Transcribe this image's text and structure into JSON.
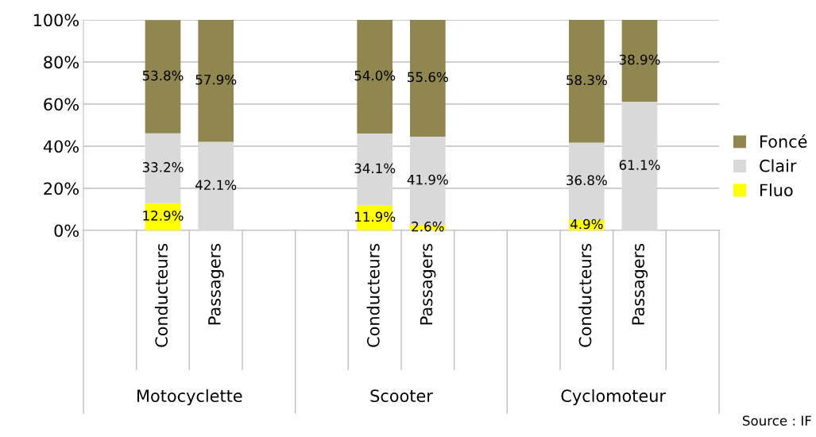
{
  "chart_data": {
    "type": "bar",
    "stacked": true,
    "categories": [
      null,
      "Conducteurs",
      "Passagers",
      null,
      null,
      "Conducteurs",
      "Passagers",
      null,
      null,
      "Conducteurs",
      "Passagers",
      null
    ],
    "series": [
      {
        "name": "Fluo",
        "color": "#ffff00",
        "values": [
          null,
          12.9,
          0,
          null,
          null,
          11.9,
          2.6,
          null,
          null,
          4.9,
          0,
          null
        ],
        "value_labels": [
          null,
          "12.9%",
          null,
          null,
          null,
          "11.9%",
          "2.6%",
          null,
          null,
          "4.9%",
          null,
          null
        ]
      },
      {
        "name": "Clair",
        "color": "#d9d9d9",
        "values": [
          null,
          33.2,
          42.1,
          null,
          null,
          34.1,
          41.9,
          null,
          null,
          36.8,
          61.1,
          null
        ],
        "value_labels": [
          null,
          "33.2%",
          "42.1%",
          null,
          null,
          "34.1%",
          "41.9%",
          null,
          null,
          "36.8%",
          "61.1%",
          null
        ]
      },
      {
        "name": "Foncé",
        "color": "#8f8650",
        "values": [
          null,
          53.8,
          57.9,
          null,
          null,
          54.0,
          55.6,
          null,
          null,
          58.3,
          38.9,
          null
        ],
        "value_labels": [
          null,
          "53.8%",
          "57.9%",
          null,
          null,
          "54.0%",
          "55.6%",
          null,
          null,
          "58.3%",
          "38.9%",
          null
        ]
      }
    ],
    "ylim": [
      0,
      100
    ],
    "yticks": [
      {
        "value": 0,
        "label": "0%"
      },
      {
        "value": 20,
        "label": "20%"
      },
      {
        "value": 40,
        "label": "40%"
      },
      {
        "value": 60,
        "label": "60%"
      },
      {
        "value": 80,
        "label": "80%"
      },
      {
        "value": 100,
        "label": "100%"
      }
    ],
    "grid": "y",
    "legend": "right",
    "annotations": [
      "Motocyclette",
      "Scooter",
      "Cyclomoteur",
      "Source : IF"
    ]
  }
}
